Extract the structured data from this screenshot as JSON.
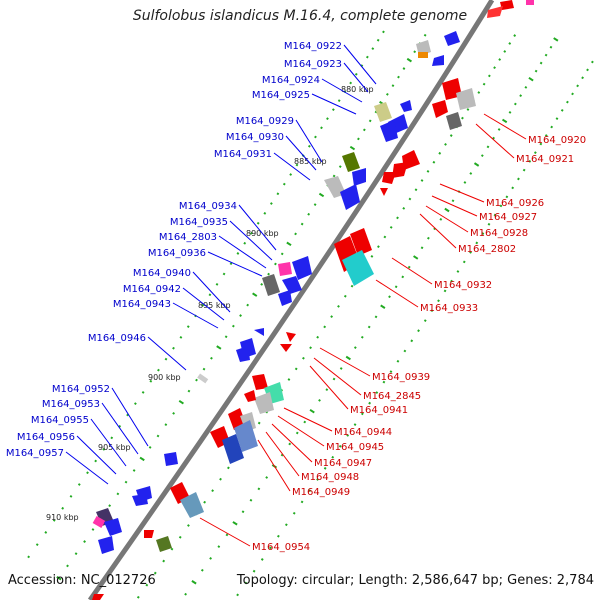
{
  "title": "Sulfolobus islandicus M.16.4, complete genome",
  "footer": {
    "accession": "Accession: NC_012726",
    "stats": "Topology: circular; Length: 2,586,647 bp; Genes: 2,784"
  },
  "colors": {
    "backbone": "#777777",
    "left_labels": "#0000cc",
    "right_labels": "#cc0000",
    "ticks": "#22aa22"
  },
  "scale_labels": [
    "880 kbp",
    "885 kbp",
    "890 kbp",
    "895 kbp",
    "900 kbp",
    "905 kbp",
    "910 kbp"
  ],
  "left_genes": [
    {
      "label": "M164_0922"
    },
    {
      "label": "M164_0923"
    },
    {
      "label": "M164_0924"
    },
    {
      "label": "M164_0925"
    },
    {
      "label": "M164_0929"
    },
    {
      "label": "M164_0930"
    },
    {
      "label": "M164_0931"
    },
    {
      "label": "M164_0934"
    },
    {
      "label": "M164_0935"
    },
    {
      "label": "M164_2803"
    },
    {
      "label": "M164_0936"
    },
    {
      "label": "M164_0940"
    },
    {
      "label": "M164_0942"
    },
    {
      "label": "M164_0943"
    },
    {
      "label": "M164_0946"
    },
    {
      "label": "M164_0952"
    },
    {
      "label": "M164_0953"
    },
    {
      "label": "M164_0955"
    },
    {
      "label": "M164_0956"
    },
    {
      "label": "M164_0957"
    }
  ],
  "right_genes": [
    {
      "label": "M164_0920"
    },
    {
      "label": "M164_0921"
    },
    {
      "label": "M164_0926"
    },
    {
      "label": "M164_0927"
    },
    {
      "label": "M164_0928"
    },
    {
      "label": "M164_2802"
    },
    {
      "label": "M164_0932"
    },
    {
      "label": "M164_0933"
    },
    {
      "label": "M164_0939"
    },
    {
      "label": "M164_2845"
    },
    {
      "label": "M164_0941"
    },
    {
      "label": "M164_0944"
    },
    {
      "label": "M164_0945"
    },
    {
      "label": "M164_0947"
    },
    {
      "label": "M164_0948"
    },
    {
      "label": "M164_0949"
    },
    {
      "label": "M164_0954"
    }
  ]
}
